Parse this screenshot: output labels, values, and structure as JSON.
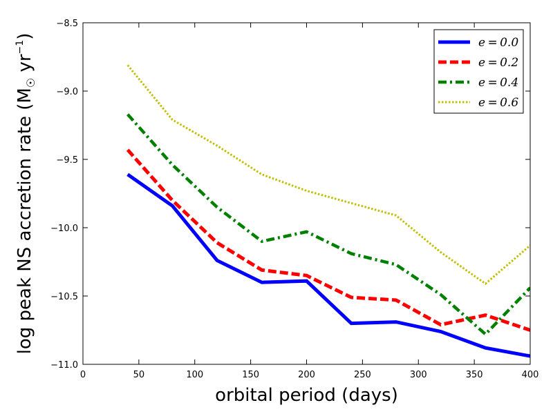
{
  "chart_data": {
    "type": "line",
    "title": "",
    "xlabel": "orbital period (days)",
    "ylabel_main": "log peak NS accretion rate (M",
    "ylabel_sun": "☉",
    "ylabel_unit": " yr",
    "ylabel_exp": "−1",
    "ylabel_close": ")",
    "xlim": [
      0,
      400
    ],
    "ylim": [
      -11.0,
      -8.5
    ],
    "xticks": [
      0,
      50,
      100,
      150,
      200,
      250,
      300,
      350,
      400
    ],
    "xtick_labels": [
      "0",
      "50",
      "100",
      "150",
      "200",
      "250",
      "300",
      "350",
      "400"
    ],
    "yticks": [
      -8.5,
      -9.0,
      -9.5,
      -10.0,
      -10.5,
      -11.0
    ],
    "ytick_labels": [
      "−8.5",
      "−9.0",
      "−9.5",
      "−10.0",
      "−10.5",
      "−11.0"
    ],
    "grid": false,
    "legend_position": "top-right",
    "x": [
      40,
      80,
      120,
      160,
      200,
      240,
      280,
      320,
      360,
      400
    ],
    "series": [
      {
        "name": "e = 0.0",
        "label": "e = 0.0",
        "color": "#0000ff",
        "style": "solid",
        "values": [
          -9.61,
          -9.84,
          -10.24,
          -10.4,
          -10.39,
          -10.7,
          -10.69,
          -10.76,
          -10.88,
          -10.94
        ]
      },
      {
        "name": "e = 0.2",
        "label": "e = 0.2",
        "color": "#ff0000",
        "style": "dashed",
        "values": [
          -9.43,
          -9.8,
          -10.11,
          -10.31,
          -10.35,
          -10.51,
          -10.53,
          -10.71,
          -10.64,
          -10.75
        ]
      },
      {
        "name": "e = 0.4",
        "label": "e = 0.4",
        "color": "#008000",
        "style": "dashdot",
        "values": [
          -9.17,
          -9.54,
          -9.85,
          -10.1,
          -10.03,
          -10.19,
          -10.27,
          -10.49,
          -10.78,
          -10.44
        ]
      },
      {
        "name": "e = 0.6",
        "label": "e = 0.6",
        "color": "#bfbf00",
        "style": "dotted",
        "values": [
          -8.81,
          -9.21,
          -9.4,
          -9.61,
          -9.73,
          -9.82,
          -9.91,
          -10.18,
          -10.41,
          -10.13
        ]
      }
    ]
  }
}
